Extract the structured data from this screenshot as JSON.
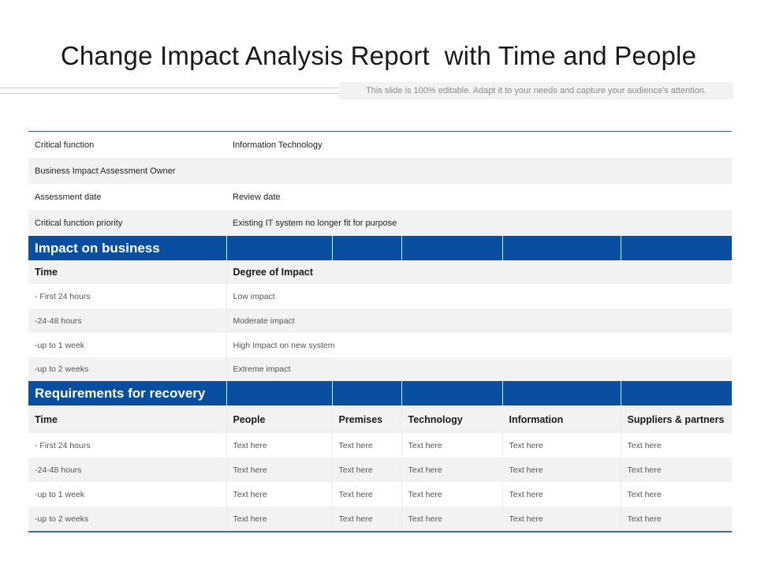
{
  "title": "Change Impact Analysis Report  with Time and People",
  "subtitle": "This slide is 100% editable. Adapt it to your needs and capture your audience's attention.",
  "info": {
    "rows": [
      {
        "label": "Critical function",
        "value": "Information Technology"
      },
      {
        "label": "Business Impact Assessment Owner",
        "value": ""
      },
      {
        "label": "Assessment date",
        "value": "Review date"
      },
      {
        "label": "Critical function priority",
        "value": "Existing IT system no longer fit for purpose"
      }
    ]
  },
  "impact": {
    "heading": "Impact on business",
    "columns": [
      "Time",
      "Degree of Impact"
    ],
    "rows": [
      {
        "time": "- First 24 hours",
        "degree": "Low impact"
      },
      {
        "time": "-24-48 hours",
        "degree": "Moderate impact"
      },
      {
        "time": "-up to 1 week",
        "degree": "High Impact on new system"
      },
      {
        "time": "-up to 2 weeks",
        "degree": "Extreme impact"
      }
    ]
  },
  "recovery": {
    "heading": "Requirements for recovery",
    "columns": [
      "Time",
      "People",
      "Premises",
      "Technology",
      "Information",
      "Suppliers & partners"
    ],
    "rows": [
      [
        "- First 24 hours",
        "Text here",
        "Text here",
        "Text here",
        "Text here",
        "Text here"
      ],
      [
        "-24-48 hours",
        "Text here",
        "Text here",
        "Text here",
        "Text here",
        "Text here"
      ],
      [
        "-up to 1 week",
        "Text here",
        "Text here",
        "Text here",
        "Text here",
        "Text here"
      ],
      [
        "-up to 2 weeks",
        "Text here",
        "Text here",
        "Text here",
        "Text here",
        "Text here"
      ]
    ]
  },
  "colors": {
    "header_blue": "#0a4ea2",
    "row_alt": "#f2f2f2"
  }
}
